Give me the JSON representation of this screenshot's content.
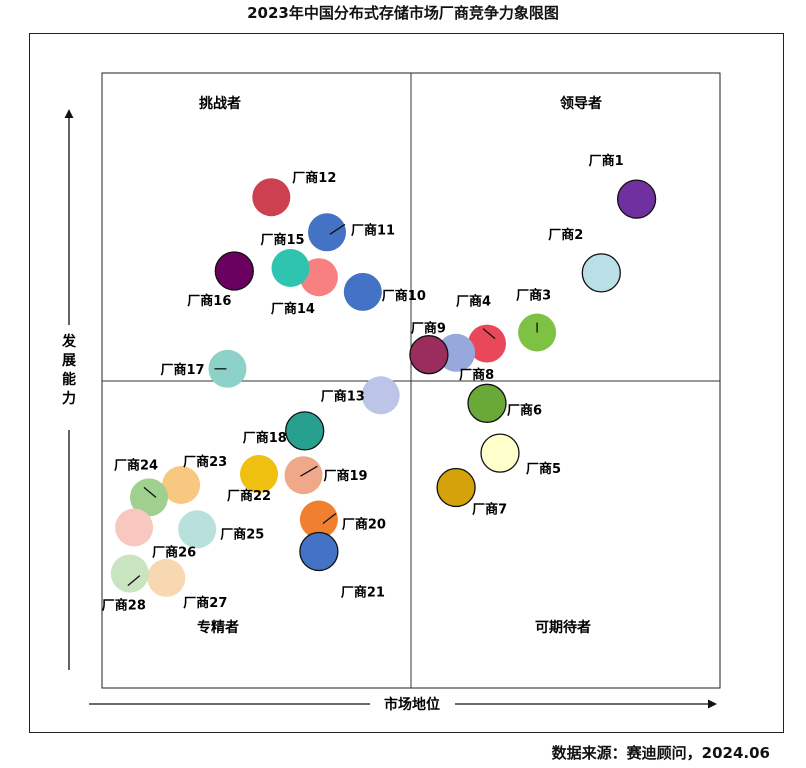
{
  "title": "2023年中国分布式存储市场厂商竞争力象限图",
  "source": "数据来源：赛迪顾问，2024.06",
  "chart_data": {
    "type": "scatter",
    "title": "2023年中国分布式存储市场厂商竞争力象限图",
    "xlabel": "市场地位",
    "ylabel": "发展能力",
    "xlim": [
      0,
      100
    ],
    "ylim": [
      0,
      100
    ],
    "quadrants": {
      "top_left": "挑战者",
      "top_right": "领导者",
      "bottom_left": "专精者",
      "bottom_right": "可期待者"
    },
    "points": [
      {
        "name": "厂商1",
        "x": 86.5,
        "y": 79.5,
        "color": "#7030a0",
        "outline": true
      },
      {
        "name": "厂商2",
        "x": 80.8,
        "y": 67.5,
        "color": "#b8e0e6",
        "outline": true
      },
      {
        "name": "厂商3",
        "x": 70.4,
        "y": 57.8,
        "color": "#7dc242",
        "outline": false
      },
      {
        "name": "厂商4",
        "x": 62.3,
        "y": 56.0,
        "color": "#e8485a",
        "outline": false
      },
      {
        "name": "厂商5",
        "x": 64.4,
        "y": 38.2,
        "color": "#ffffcc",
        "outline": true
      },
      {
        "name": "厂商6",
        "x": 62.3,
        "y": 46.3,
        "color": "#6aa838",
        "outline": true
      },
      {
        "name": "厂商7",
        "x": 57.3,
        "y": 32.6,
        "color": "#d4a20a",
        "outline": true
      },
      {
        "name": "厂商8",
        "x": 57.3,
        "y": 54.5,
        "color": "#97a8dc",
        "outline": false
      },
      {
        "name": "厂商9",
        "x": 52.9,
        "y": 54.2,
        "color": "#9b2d5e",
        "outline": true
      },
      {
        "name": "厂商10",
        "x": 42.2,
        "y": 64.4,
        "color": "#4472c4",
        "outline": false
      },
      {
        "name": "厂商11",
        "x": 36.4,
        "y": 74.1,
        "color": "#4472c4",
        "outline": false
      },
      {
        "name": "厂商12",
        "x": 27.4,
        "y": 79.8,
        "color": "#cd4050",
        "outline": false
      },
      {
        "name": "厂商13",
        "x": 45.1,
        "y": 47.6,
        "color": "#bcc4e8",
        "outline": false
      },
      {
        "name": "厂商14",
        "x": 35.1,
        "y": 66.8,
        "color": "#f88080",
        "outline": false
      },
      {
        "name": "厂商15",
        "x": 30.5,
        "y": 68.3,
        "color": "#2ec4b0",
        "outline": false
      },
      {
        "name": "厂商16",
        "x": 21.4,
        "y": 67.8,
        "color": "#6a0060",
        "outline": true
      },
      {
        "name": "厂商17",
        "x": 20.3,
        "y": 51.9,
        "color": "#8cd2c8",
        "outline": false
      },
      {
        "name": "厂商18",
        "x": 32.8,
        "y": 41.8,
        "color": "#28a090",
        "outline": true
      },
      {
        "name": "厂商19",
        "x": 32.6,
        "y": 34.6,
        "color": "#f0a88a",
        "outline": false
      },
      {
        "name": "厂商20",
        "x": 35.1,
        "y": 27.4,
        "color": "#f08030",
        "outline": false
      },
      {
        "name": "厂商21",
        "x": 35.1,
        "y": 22.2,
        "color": "#4472c4",
        "outline": true
      },
      {
        "name": "厂商22",
        "x": 25.4,
        "y": 34.8,
        "color": "#f0c010",
        "outline": false
      },
      {
        "name": "厂商23",
        "x": 12.8,
        "y": 33.0,
        "color": "#f8c880",
        "outline": false
      },
      {
        "name": "厂商24",
        "x": 7.6,
        "y": 31.0,
        "color": "#a0d090",
        "outline": false
      },
      {
        "name": "厂商25",
        "x": 15.4,
        "y": 25.8,
        "color": "#b8e0dc",
        "outline": false
      },
      {
        "name": "厂商26",
        "x": 5.2,
        "y": 26.1,
        "color": "#f8c8c0",
        "outline": false
      },
      {
        "name": "厂商27",
        "x": 10.4,
        "y": 17.9,
        "color": "#f8d8b0",
        "outline": false
      },
      {
        "name": "厂商28",
        "x": 4.5,
        "y": 18.6,
        "color": "#c8e4c0",
        "outline": false
      }
    ]
  }
}
